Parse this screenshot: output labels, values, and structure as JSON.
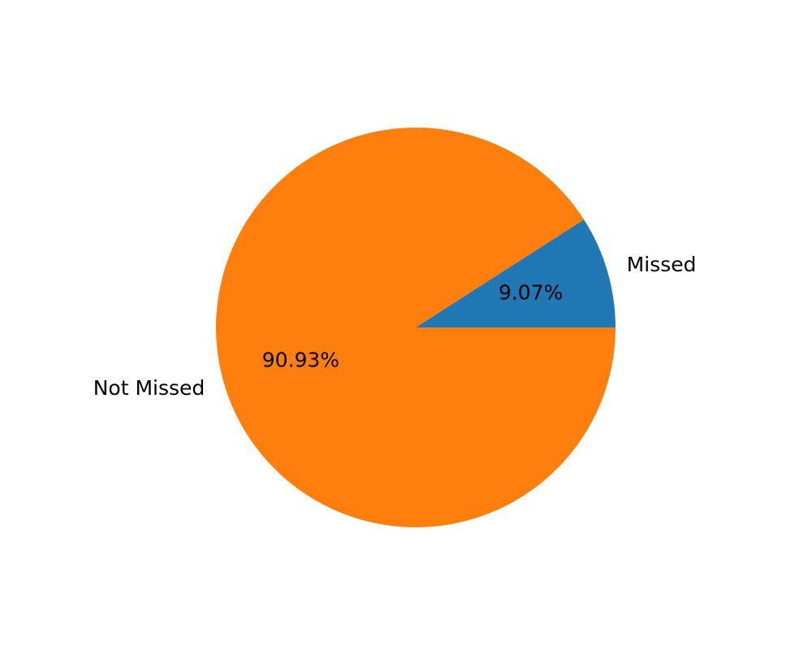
{
  "chart_data": {
    "type": "pie",
    "title": "",
    "slices": [
      {
        "label": "Missed",
        "value": 9.07,
        "pct_label": "9.07%",
        "color": "#1f77b4"
      },
      {
        "label": "Not Missed",
        "value": 90.93,
        "pct_label": "90.93%",
        "color": "#ff7f0e"
      }
    ],
    "start_angle_deg": 0,
    "direction": "counterclockwise"
  }
}
